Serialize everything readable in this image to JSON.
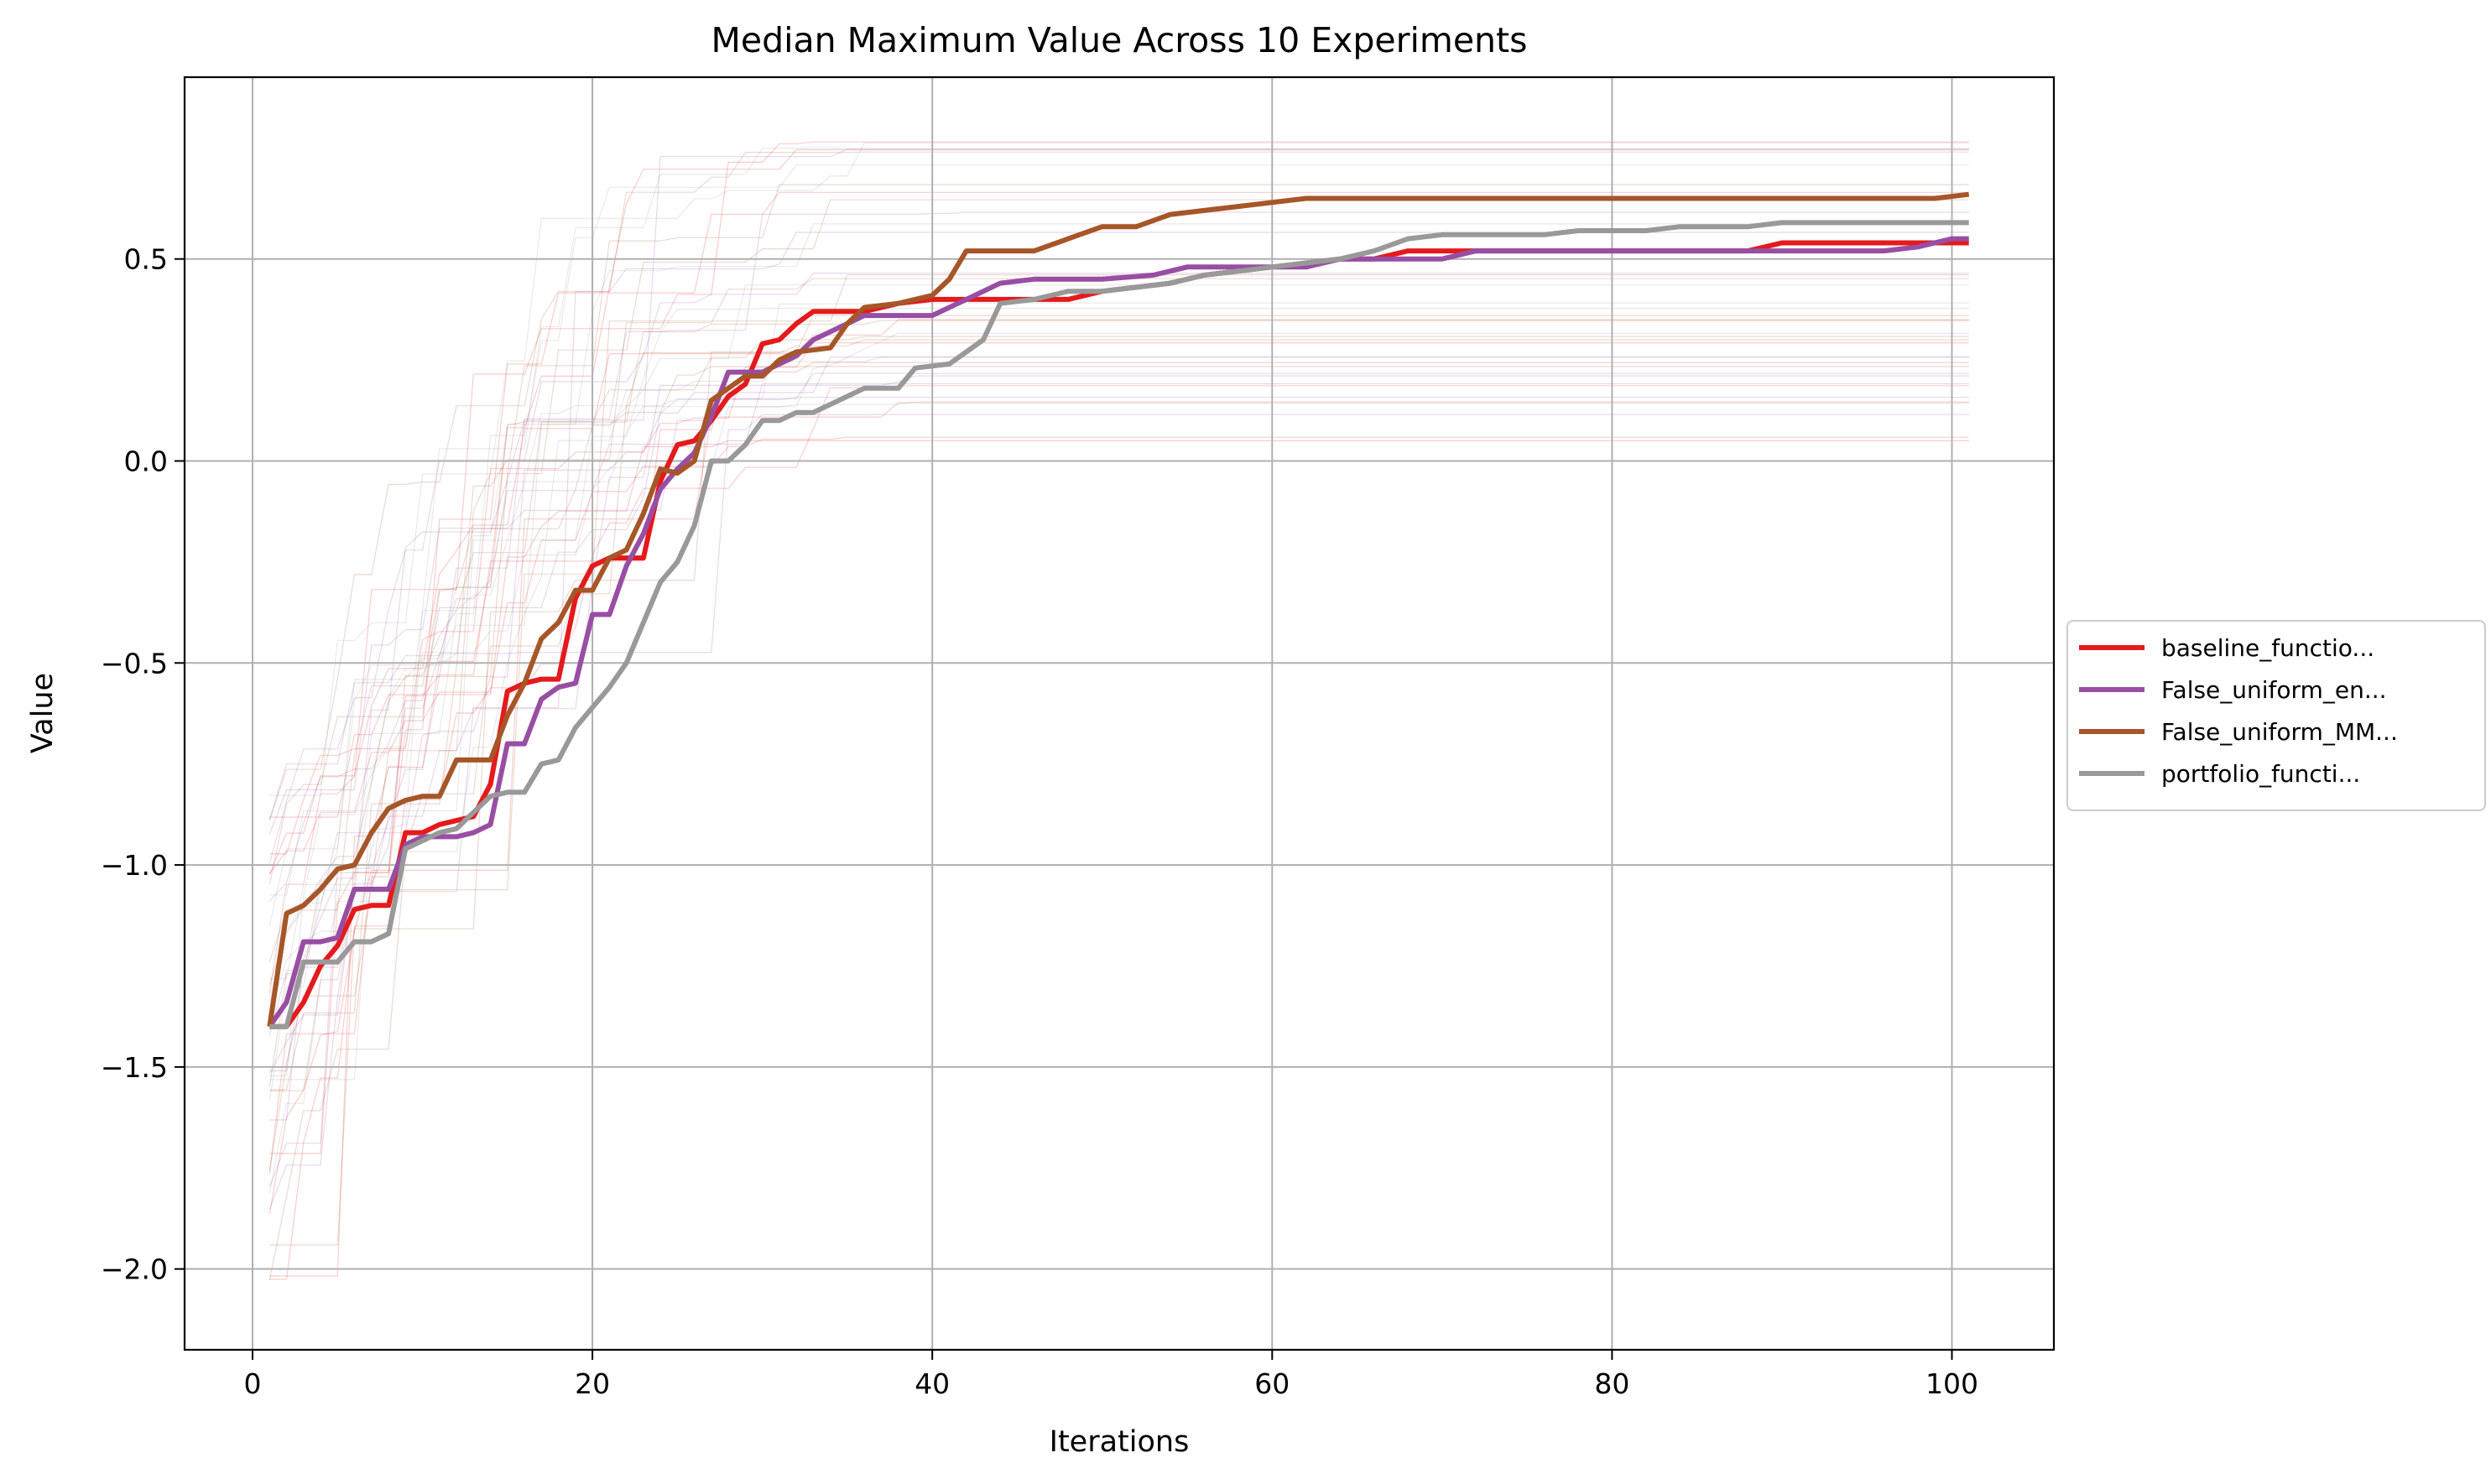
{
  "chart_data": {
    "type": "line",
    "title": "Median Maximum Value Across 10 Experiments",
    "xlabel": "Iterations",
    "ylabel": "Value",
    "xlim": [
      -4,
      106
    ],
    "ylim": [
      -2.2,
      0.95
    ],
    "x_ticks": [
      0,
      20,
      40,
      60,
      80,
      100
    ],
    "x_tick_labels": [
      "0",
      "20",
      "40",
      "60",
      "80",
      "100"
    ],
    "y_ticks": [
      -2.0,
      -1.5,
      -1.0,
      -0.5,
      0.0,
      0.5
    ],
    "y_tick_labels": [
      "−2.0",
      "−1.5",
      "−1.0",
      "−0.5",
      "0.0",
      "0.5"
    ],
    "grid": true,
    "legend": "outside-right",
    "series": [
      {
        "name": "baseline_functio...",
        "color": "#e41a1c",
        "points": [
          [
            1,
            -1.4
          ],
          [
            2,
            -1.4
          ],
          [
            3,
            -1.34
          ],
          [
            4,
            -1.25
          ],
          [
            5,
            -1.2
          ],
          [
            6,
            -1.11
          ],
          [
            7,
            -1.1
          ],
          [
            8,
            -1.1
          ],
          [
            9,
            -0.92
          ],
          [
            10,
            -0.92
          ],
          [
            11,
            -0.9
          ],
          [
            12,
            -0.89
          ],
          [
            13,
            -0.88
          ],
          [
            14,
            -0.8
          ],
          [
            15,
            -0.57
          ],
          [
            16,
            -0.55
          ],
          [
            17,
            -0.54
          ],
          [
            18,
            -0.54
          ],
          [
            19,
            -0.34
          ],
          [
            20,
            -0.26
          ],
          [
            21,
            -0.24
          ],
          [
            22,
            -0.24
          ],
          [
            23,
            -0.24
          ],
          [
            24,
            -0.05
          ],
          [
            25,
            0.04
          ],
          [
            26,
            0.05
          ],
          [
            27,
            0.1
          ],
          [
            28,
            0.16
          ],
          [
            29,
            0.19
          ],
          [
            30,
            0.29
          ],
          [
            31,
            0.3
          ],
          [
            32,
            0.34
          ],
          [
            33,
            0.37
          ],
          [
            36,
            0.37
          ],
          [
            38,
            0.39
          ],
          [
            40,
            0.4
          ],
          [
            48,
            0.4
          ],
          [
            50,
            0.42
          ],
          [
            54,
            0.44
          ],
          [
            56,
            0.46
          ],
          [
            60,
            0.48
          ],
          [
            64,
            0.5
          ],
          [
            66,
            0.5
          ],
          [
            68,
            0.52
          ],
          [
            88,
            0.52
          ],
          [
            90,
            0.54
          ],
          [
            101,
            0.54
          ]
        ]
      },
      {
        "name": "False_uniform_en...",
        "color": "#984ea3",
        "points": [
          [
            1,
            -1.4
          ],
          [
            2,
            -1.34
          ],
          [
            3,
            -1.19
          ],
          [
            4,
            -1.19
          ],
          [
            5,
            -1.18
          ],
          [
            6,
            -1.06
          ],
          [
            7,
            -1.06
          ],
          [
            8,
            -1.06
          ],
          [
            9,
            -0.95
          ],
          [
            10,
            -0.93
          ],
          [
            11,
            -0.93
          ],
          [
            12,
            -0.93
          ],
          [
            13,
            -0.92
          ],
          [
            14,
            -0.9
          ],
          [
            15,
            -0.7
          ],
          [
            16,
            -0.7
          ],
          [
            17,
            -0.59
          ],
          [
            18,
            -0.56
          ],
          [
            19,
            -0.55
          ],
          [
            20,
            -0.38
          ],
          [
            21,
            -0.38
          ],
          [
            22,
            -0.26
          ],
          [
            23,
            -0.18
          ],
          [
            24,
            -0.07
          ],
          [
            25,
            -0.02
          ],
          [
            26,
            0.02
          ],
          [
            27,
            0.11
          ],
          [
            28,
            0.22
          ],
          [
            29,
            0.22
          ],
          [
            30,
            0.22
          ],
          [
            31,
            0.24
          ],
          [
            32,
            0.26
          ],
          [
            33,
            0.3
          ],
          [
            34,
            0.32
          ],
          [
            36,
            0.36
          ],
          [
            40,
            0.36
          ],
          [
            42,
            0.4
          ],
          [
            44,
            0.44
          ],
          [
            46,
            0.45
          ],
          [
            50,
            0.45
          ],
          [
            53,
            0.46
          ],
          [
            55,
            0.48
          ],
          [
            60,
            0.48
          ],
          [
            62,
            0.48
          ],
          [
            64,
            0.5
          ],
          [
            70,
            0.5
          ],
          [
            72,
            0.52
          ],
          [
            96,
            0.52
          ],
          [
            98,
            0.53
          ],
          [
            100,
            0.55
          ],
          [
            101,
            0.55
          ]
        ]
      },
      {
        "name": "False_uniform_MM...",
        "color": "#a65628",
        "points": [
          [
            1,
            -1.4
          ],
          [
            2,
            -1.12
          ],
          [
            3,
            -1.1
          ],
          [
            4,
            -1.06
          ],
          [
            5,
            -1.01
          ],
          [
            6,
            -1.0
          ],
          [
            7,
            -0.92
          ],
          [
            8,
            -0.86
          ],
          [
            9,
            -0.84
          ],
          [
            10,
            -0.83
          ],
          [
            11,
            -0.83
          ],
          [
            12,
            -0.74
          ],
          [
            13,
            -0.74
          ],
          [
            14,
            -0.74
          ],
          [
            15,
            -0.63
          ],
          [
            16,
            -0.55
          ],
          [
            17,
            -0.44
          ],
          [
            18,
            -0.4
          ],
          [
            19,
            -0.32
          ],
          [
            20,
            -0.32
          ],
          [
            21,
            -0.24
          ],
          [
            22,
            -0.22
          ],
          [
            23,
            -0.13
          ],
          [
            24,
            -0.02
          ],
          [
            25,
            -0.03
          ],
          [
            26,
            0.0
          ],
          [
            27,
            0.15
          ],
          [
            28,
            0.18
          ],
          [
            29,
            0.21
          ],
          [
            30,
            0.21
          ],
          [
            31,
            0.25
          ],
          [
            32,
            0.27
          ],
          [
            34,
            0.28
          ],
          [
            35,
            0.34
          ],
          [
            36,
            0.38
          ],
          [
            38,
            0.39
          ],
          [
            40,
            0.41
          ],
          [
            41,
            0.45
          ],
          [
            42,
            0.52
          ],
          [
            46,
            0.52
          ],
          [
            48,
            0.55
          ],
          [
            50,
            0.58
          ],
          [
            52,
            0.58
          ],
          [
            54,
            0.61
          ],
          [
            56,
            0.62
          ],
          [
            58,
            0.63
          ],
          [
            60,
            0.64
          ],
          [
            62,
            0.65
          ],
          [
            99,
            0.65
          ],
          [
            101,
            0.66
          ]
        ]
      },
      {
        "name": "portfolio_functi...",
        "color": "#999999",
        "points": [
          [
            1,
            -1.4
          ],
          [
            2,
            -1.4
          ],
          [
            3,
            -1.24
          ],
          [
            4,
            -1.24
          ],
          [
            5,
            -1.24
          ],
          [
            6,
            -1.19
          ],
          [
            7,
            -1.19
          ],
          [
            8,
            -1.17
          ],
          [
            9,
            -0.96
          ],
          [
            10,
            -0.94
          ],
          [
            11,
            -0.92
          ],
          [
            12,
            -0.91
          ],
          [
            13,
            -0.87
          ],
          [
            14,
            -0.83
          ],
          [
            15,
            -0.82
          ],
          [
            16,
            -0.82
          ],
          [
            17,
            -0.75
          ],
          [
            18,
            -0.74
          ],
          [
            19,
            -0.66
          ],
          [
            20,
            -0.61
          ],
          [
            21,
            -0.56
          ],
          [
            22,
            -0.5
          ],
          [
            23,
            -0.4
          ],
          [
            24,
            -0.3
          ],
          [
            25,
            -0.25
          ],
          [
            26,
            -0.16
          ],
          [
            27,
            0.0
          ],
          [
            28,
            0.0
          ],
          [
            29,
            0.04
          ],
          [
            30,
            0.1
          ],
          [
            31,
            0.1
          ],
          [
            32,
            0.12
          ],
          [
            33,
            0.12
          ],
          [
            34,
            0.14
          ],
          [
            35,
            0.16
          ],
          [
            36,
            0.18
          ],
          [
            38,
            0.18
          ],
          [
            39,
            0.23
          ],
          [
            41,
            0.24
          ],
          [
            42,
            0.27
          ],
          [
            43,
            0.3
          ],
          [
            44,
            0.39
          ],
          [
            46,
            0.4
          ],
          [
            48,
            0.42
          ],
          [
            50,
            0.42
          ],
          [
            52,
            0.43
          ],
          [
            54,
            0.44
          ],
          [
            56,
            0.46
          ],
          [
            58,
            0.47
          ],
          [
            60,
            0.48
          ],
          [
            62,
            0.49
          ],
          [
            64,
            0.5
          ],
          [
            66,
            0.52
          ],
          [
            68,
            0.55
          ],
          [
            70,
            0.56
          ],
          [
            76,
            0.56
          ],
          [
            78,
            0.57
          ],
          [
            82,
            0.57
          ],
          [
            84,
            0.58
          ],
          [
            88,
            0.58
          ],
          [
            90,
            0.59
          ],
          [
            101,
            0.59
          ]
        ]
      }
    ]
  }
}
